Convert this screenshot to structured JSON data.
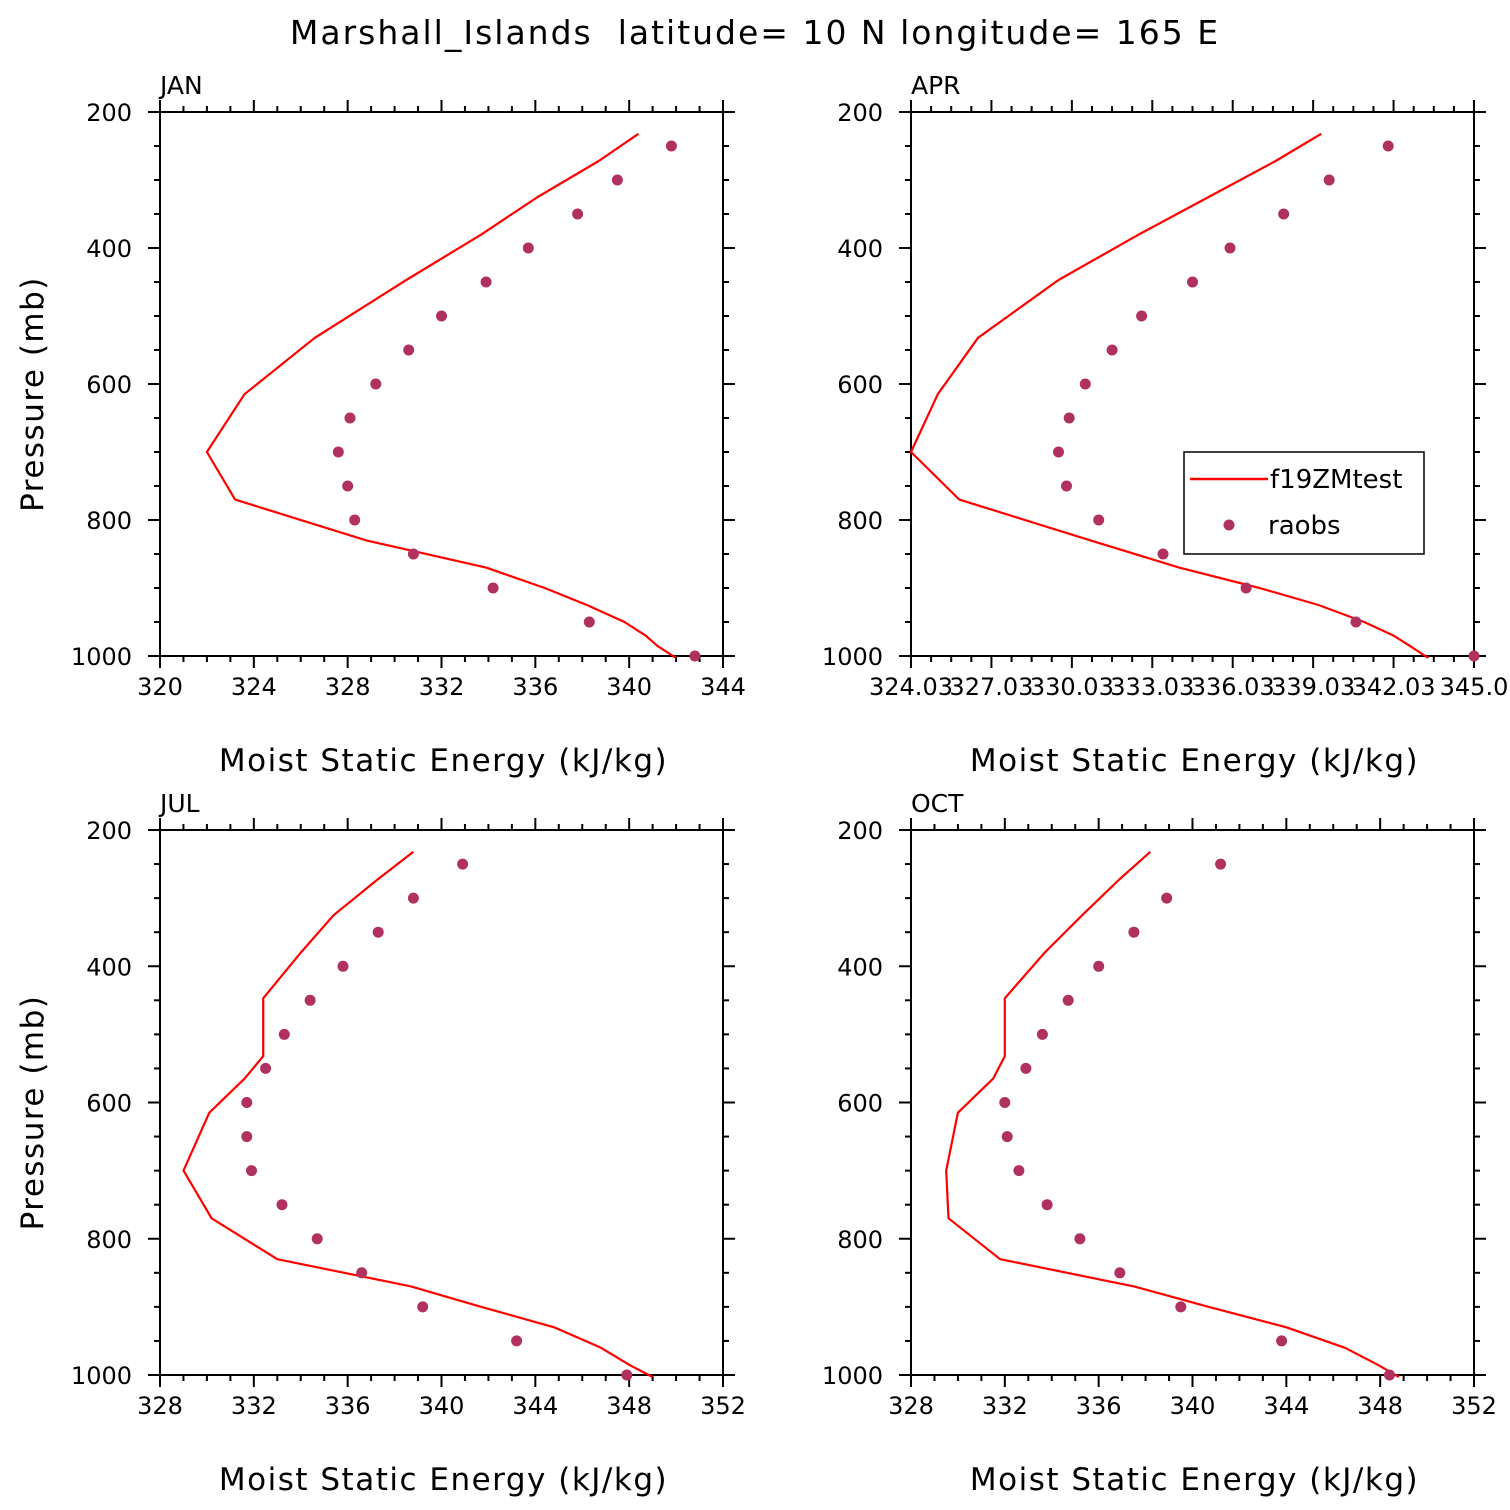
{
  "figure_title": "Marshall_Islands  latitude= 10 N longitude= 165 E",
  "legend": {
    "model_label": "f19ZMtest",
    "obs_label": "raobs"
  },
  "colors": {
    "model": "#ff0000",
    "obs": "#b03060",
    "axes": "#000000"
  },
  "chart_data": [
    {
      "type": "line",
      "panel_title": "JAN",
      "xlabel": "Moist Static Energy (kJ/kg)",
      "ylabel": "Pressure (mb)",
      "xlim": [
        320,
        344
      ],
      "ylim": [
        1000,
        200
      ],
      "xticks": [
        320,
        324,
        328,
        332,
        336,
        340,
        344
      ],
      "xtick_labels": [
        "320",
        "324",
        "328",
        "332",
        "336",
        "340",
        "344"
      ],
      "yticks": [
        200,
        400,
        600,
        800,
        1000
      ],
      "ytick_labels": [
        "200",
        "400",
        "600",
        "800",
        "1000"
      ],
      "series": [
        {
          "name": "f19ZMtest",
          "kind": "line",
          "x": [
            340.4,
            338.7,
            336.1,
            333.7,
            330.5,
            326.6,
            323.6,
            322.0,
            323.2,
            328.8,
            333.9,
            336.4,
            338.2,
            339.8,
            340.7,
            341.2,
            342.0
          ],
          "y": [
            232,
            272,
            325,
            380,
            447,
            532,
            615,
            700,
            770,
            830,
            870,
            900,
            925,
            950,
            970,
            985,
            1003
          ]
        },
        {
          "name": "raobs",
          "kind": "scatter",
          "x": [
            341.8,
            339.5,
            337.8,
            335.7,
            333.9,
            332.0,
            330.6,
            329.2,
            328.1,
            327.6,
            328.0,
            328.3,
            330.8,
            334.2,
            338.3,
            342.8
          ],
          "y": [
            250,
            300,
            350,
            400,
            450,
            500,
            550,
            600,
            650,
            700,
            750,
            800,
            850,
            900,
            950,
            1000
          ]
        }
      ]
    },
    {
      "type": "line",
      "panel_title": "APR",
      "xlabel": "Moist Static Energy (kJ/kg)",
      "ylabel": "",
      "xlim": [
        324,
        345
      ],
      "ylim": [
        1000,
        200
      ],
      "xticks": [
        324,
        327,
        330,
        333,
        336,
        339,
        342,
        345
      ],
      "xtick_labels": [
        "324.03",
        "327.03",
        "330.03",
        "333.03",
        "336.03",
        "339.03",
        "342.03",
        "345.0"
      ],
      "yticks": [
        200,
        400,
        600,
        800,
        1000
      ],
      "ytick_labels": [
        "200",
        "400",
        "600",
        "800",
        "1000"
      ],
      "legend_position": "right-middle",
      "series": [
        {
          "name": "f19ZMtest",
          "kind": "line",
          "x": [
            339.3,
            337.6,
            335.1,
            332.5,
            329.5,
            326.5,
            325.0,
            324.0,
            325.8,
            330.7,
            334.0,
            337.0,
            339.2,
            340.9,
            342.0,
            342.6,
            343.3
          ],
          "y": [
            232,
            272,
            325,
            380,
            447,
            532,
            615,
            700,
            770,
            830,
            870,
            900,
            925,
            950,
            970,
            985,
            1003
          ]
        },
        {
          "name": "raobs",
          "kind": "scatter",
          "x": [
            341.8,
            339.6,
            337.9,
            335.9,
            334.5,
            332.6,
            331.5,
            330.5,
            329.9,
            329.5,
            329.8,
            331.0,
            333.4,
            336.5,
            340.6,
            345.0
          ],
          "y": [
            250,
            300,
            350,
            400,
            450,
            500,
            550,
            600,
            650,
            700,
            750,
            800,
            850,
            900,
            950,
            1000
          ]
        }
      ]
    },
    {
      "type": "line",
      "panel_title": "JUL",
      "xlabel": "Moist Static Energy (kJ/kg)",
      "ylabel": "Pressure (mb)",
      "xlim": [
        328,
        352
      ],
      "ylim": [
        1000,
        200
      ],
      "xticks": [
        328,
        332,
        336,
        340,
        344,
        348,
        352
      ],
      "xtick_labels": [
        "328",
        "332",
        "336",
        "340",
        "344",
        "348",
        "352"
      ],
      "yticks": [
        200,
        400,
        600,
        800,
        1000
      ],
      "ytick_labels": [
        "200",
        "400",
        "600",
        "800",
        "1000"
      ],
      "series": [
        {
          "name": "f19ZMtest",
          "kind": "line",
          "x": [
            338.8,
            337.3,
            335.4,
            334.0,
            332.4,
            332.4,
            331.6,
            330.1,
            329.0,
            330.2,
            333.0,
            338.7,
            341.7,
            344.8,
            346.8,
            348.0,
            349.0
          ],
          "y": [
            232,
            272,
            325,
            380,
            447,
            532,
            565,
            615,
            700,
            770,
            830,
            870,
            900,
            930,
            960,
            985,
            1003
          ]
        },
        {
          "name": "raobs",
          "kind": "scatter",
          "x": [
            340.9,
            338.8,
            337.3,
            335.8,
            334.4,
            333.3,
            332.5,
            331.7,
            331.7,
            331.9,
            333.2,
            334.7,
            336.6,
            339.2,
            343.2,
            347.9
          ],
          "y": [
            250,
            300,
            350,
            400,
            450,
            500,
            550,
            600,
            650,
            700,
            750,
            800,
            850,
            900,
            950,
            1000
          ]
        }
      ]
    },
    {
      "type": "line",
      "panel_title": "OCT",
      "xlabel": "Moist Static Energy (kJ/kg)",
      "ylabel": "",
      "xlim": [
        328,
        352
      ],
      "ylim": [
        1000,
        200
      ],
      "xticks": [
        328,
        332,
        336,
        340,
        344,
        348,
        352
      ],
      "xtick_labels": [
        "328",
        "332",
        "336",
        "340",
        "344",
        "348",
        "352"
      ],
      "yticks": [
        200,
        400,
        600,
        800,
        1000
      ],
      "ytick_labels": [
        "200",
        "400",
        "600",
        "800",
        "1000"
      ],
      "series": [
        {
          "name": "f19ZMtest",
          "kind": "line",
          "x": [
            338.2,
            336.9,
            335.3,
            333.7,
            332.0,
            332.0,
            331.5,
            330.0,
            329.5,
            329.6,
            331.8,
            337.5,
            340.7,
            344.0,
            346.5,
            347.9,
            348.8
          ],
          "y": [
            232,
            272,
            325,
            380,
            447,
            532,
            565,
            615,
            700,
            770,
            830,
            870,
            900,
            930,
            960,
            985,
            1003
          ]
        },
        {
          "name": "raobs",
          "kind": "scatter",
          "x": [
            341.2,
            338.9,
            337.5,
            336.0,
            334.7,
            333.6,
            332.9,
            332.0,
            332.1,
            332.6,
            333.8,
            335.2,
            336.9,
            339.5,
            343.8,
            348.4
          ],
          "y": [
            250,
            300,
            350,
            400,
            450,
            500,
            550,
            600,
            650,
            700,
            750,
            800,
            850,
            900,
            950,
            1000
          ]
        }
      ]
    }
  ]
}
